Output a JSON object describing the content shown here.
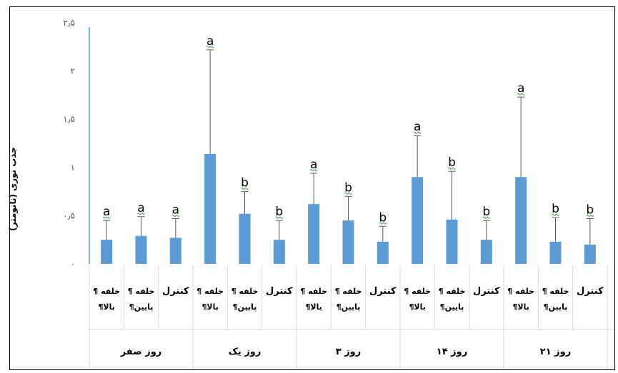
{
  "chart_data": {
    "type": "bar",
    "ylabel": "جذب نوری (نانومتر)",
    "ylim": [
      0,
      2.5
    ],
    "yticks": [
      {
        "value": 0,
        "label": "۰"
      },
      {
        "value": 0.5,
        "label": "۰٫۵"
      },
      {
        "value": 1,
        "label": "۱"
      },
      {
        "value": 1.5,
        "label": "۱٫۵"
      },
      {
        "value": 2,
        "label": "۲"
      },
      {
        "value": 2.5,
        "label": "۲٫۵"
      }
    ],
    "bar_color": "#5b9bd5",
    "groups": [
      {
        "label": "روز صفر",
        "bars": [
          {
            "category": [
              "خلفه ¶",
              "بالا¶"
            ],
            "value": 0.25,
            "error": 0.2,
            "letter": "a"
          },
          {
            "category": [
              "خلفه ¶",
              "پایین¶"
            ],
            "value": 0.29,
            "error": 0.2,
            "letter": "a"
          },
          {
            "category": [
              "کنترل"
            ],
            "value": 0.27,
            "error": 0.2,
            "letter": "a"
          }
        ]
      },
      {
        "label": "روز یک",
        "bars": [
          {
            "category": [
              "خلفه ¶",
              "بالا¶"
            ],
            "value": 1.14,
            "error": 1.08,
            "letter": "a"
          },
          {
            "category": [
              "خلفه ¶",
              "پایین¶"
            ],
            "value": 0.52,
            "error": 0.23,
            "letter": "b"
          },
          {
            "category": [
              "کنترل"
            ],
            "value": 0.25,
            "error": 0.2,
            "letter": "b"
          }
        ]
      },
      {
        "label": "روز ۳",
        "bars": [
          {
            "category": [
              "خلفه ¶",
              "بالا¶"
            ],
            "value": 0.62,
            "error": 0.32,
            "letter": "a"
          },
          {
            "category": [
              "خلفه ¶",
              "پایین¶"
            ],
            "value": 0.45,
            "error": 0.25,
            "letter": "b"
          },
          {
            "category": [
              "کنترل"
            ],
            "value": 0.23,
            "error": 0.16,
            "letter": "b"
          }
        ]
      },
      {
        "label": "روز ۱۴",
        "bars": [
          {
            "category": [
              "خلفه ¶",
              "بالا¶"
            ],
            "value": 0.9,
            "error": 0.43,
            "letter": "a"
          },
          {
            "category": [
              "خلفه ¶",
              "پایین¶"
            ],
            "value": 0.46,
            "error": 0.5,
            "letter": "b"
          },
          {
            "category": [
              "کنترل"
            ],
            "value": 0.25,
            "error": 0.2,
            "letter": "b"
          }
        ]
      },
      {
        "label": "روز ۲۱",
        "bars": [
          {
            "category": [
              "خلفه ¶",
              "بالا¶"
            ],
            "value": 0.9,
            "error": 0.83,
            "letter": "a"
          },
          {
            "category": [
              "خلفه ¶",
              "پایین¶"
            ],
            "value": 0.23,
            "error": 0.25,
            "letter": "b"
          },
          {
            "category": [
              "کنترل"
            ],
            "value": 0.2,
            "error": 0.27,
            "letter": "b"
          }
        ]
      }
    ]
  }
}
